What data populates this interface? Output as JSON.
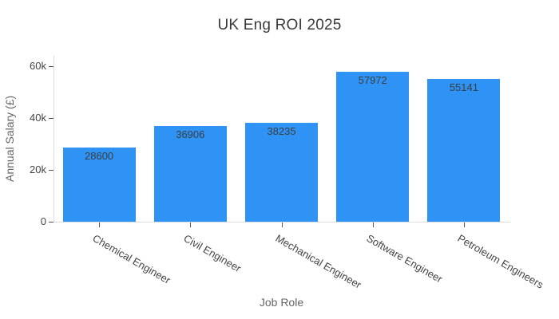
{
  "chart_data": {
    "type": "bar",
    "title": "UK Eng ROI 2025",
    "xlabel": "Job Role",
    "ylabel": "Annual Salary (£)",
    "categories": [
      "Chemical Engineer",
      "Civil Engineer",
      "Mechanical Engineer",
      "Software Engineer",
      "Petroleum Engineers"
    ],
    "values": [
      28600,
      36906,
      38235,
      57972,
      55141
    ],
    "bar_value_labels": [
      "28600",
      "36906",
      "38235",
      "57972",
      "55141"
    ],
    "orientation": "vertical",
    "ylim": [
      0,
      64000
    ],
    "yticks": {
      "values": [
        0,
        20000,
        40000,
        60000
      ],
      "labels": [
        "0",
        "20k",
        "40k",
        "60k"
      ]
    },
    "x_tick_angle_deg": 30,
    "grid": false,
    "legend": "none",
    "colors": {
      "bar": "#2e93f5",
      "title": "#3a3a3a",
      "axis_title": "#666666",
      "tick_label": "#444444",
      "bar_value_label": "#3d3d3d",
      "axis_line": "#dddddd",
      "tick_mark": "#555555",
      "background": "#ffffff"
    }
  }
}
